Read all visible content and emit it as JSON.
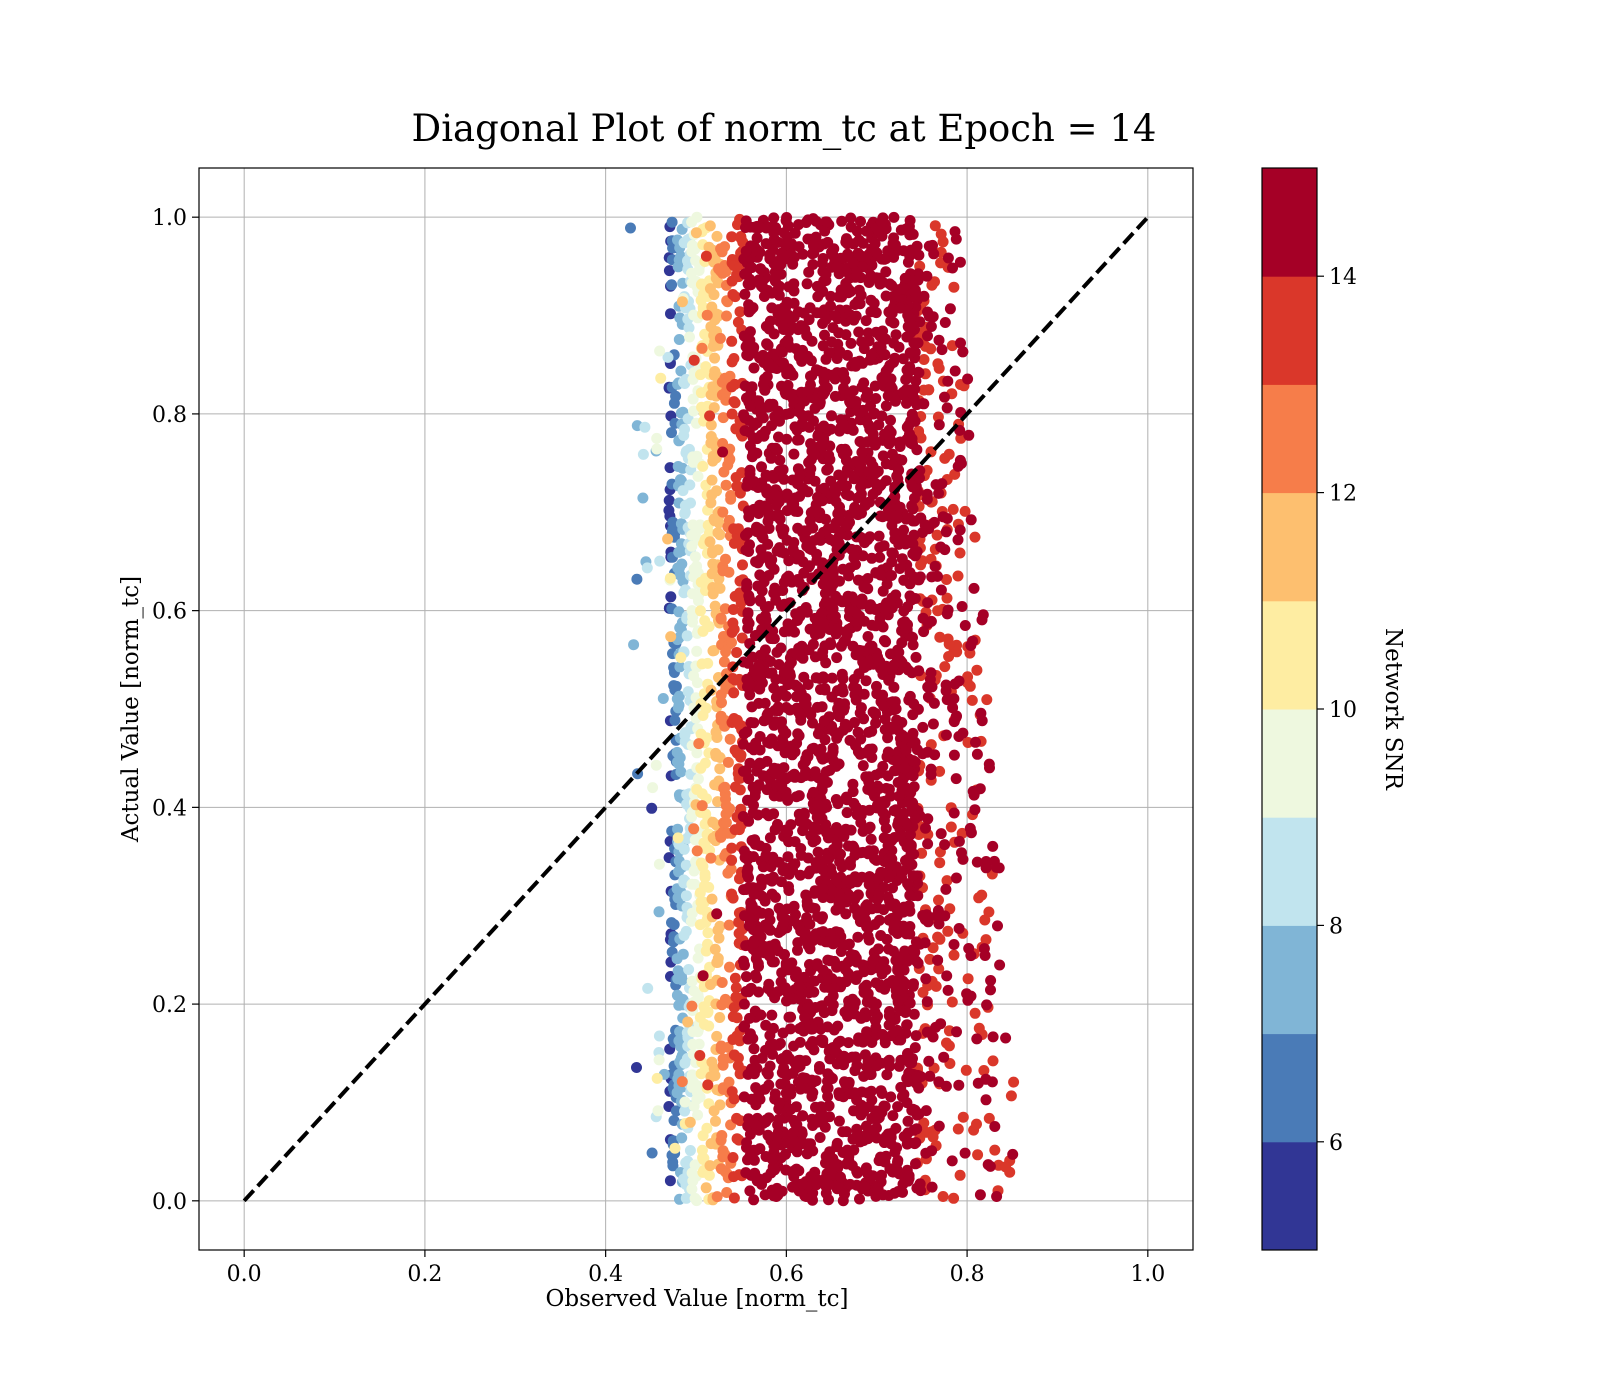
{
  "chart_data": {
    "type": "scatter",
    "title": "Diagonal Plot of norm_tc at Epoch = 14",
    "xlabel": "Observed Value [norm_tc]",
    "ylabel": "Actual Value [norm_tc]",
    "xlim": [
      -0.05,
      1.05
    ],
    "ylim": [
      -0.05,
      1.05
    ],
    "xticks": [
      "0.0",
      "0.2",
      "0.4",
      "0.6",
      "0.8",
      "1.0"
    ],
    "yticks": [
      "0.0",
      "0.2",
      "0.4",
      "0.6",
      "0.8",
      "1.0"
    ],
    "grid": true,
    "reference_line": {
      "style": "dashed",
      "color": "#000000",
      "x": [
        0.0,
        1.0
      ],
      "y": [
        0.0,
        1.0
      ]
    },
    "point_cloud": {
      "x_range": [
        0.43,
        0.88
      ],
      "y_range": [
        0.0,
        1.0
      ],
      "dense_core_x_range": [
        0.56,
        0.74
      ],
      "color_variable": "Network SNR",
      "note_color_trend": "low SNR points concentrate at small observed values (left edge); high SNR dominates the core"
    },
    "colorbar": {
      "label": "Network SNR",
      "range": [
        5,
        15
      ],
      "ticks": [
        "6",
        "8",
        "10",
        "12",
        "14"
      ],
      "bins": [
        {
          "from": 5,
          "to": 6,
          "color": "#313695"
        },
        {
          "from": 6,
          "to": 7,
          "color": "#4a7bb7"
        },
        {
          "from": 7,
          "to": 8,
          "color": "#80b5d6"
        },
        {
          "from": 8,
          "to": 9,
          "color": "#c1e4ee"
        },
        {
          "from": 9,
          "to": 10,
          "color": "#eef8df"
        },
        {
          "from": 10,
          "to": 11,
          "color": "#feeda2"
        },
        {
          "from": 11,
          "to": 12,
          "color": "#fdbf6f"
        },
        {
          "from": 12,
          "to": 13,
          "color": "#f67d4a"
        },
        {
          "from": 13,
          "to": 14,
          "color": "#da372a"
        },
        {
          "from": 14,
          "to": 15,
          "color": "#a50026"
        }
      ]
    }
  }
}
